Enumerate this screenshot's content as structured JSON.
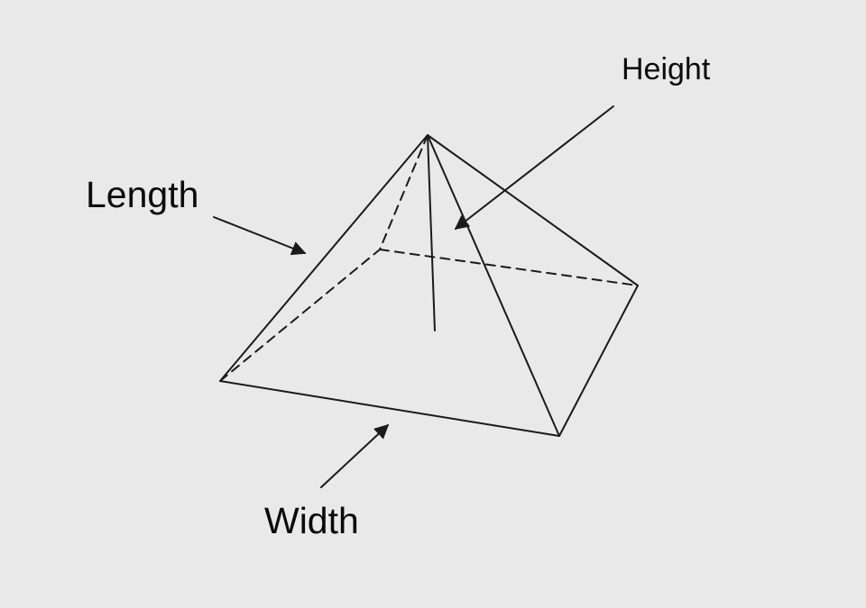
{
  "labels": {
    "height": "Height",
    "length": "Length",
    "width": "Width"
  },
  "colors": {
    "background": "#e9e9e9",
    "stroke": "#1a1a1a"
  }
}
